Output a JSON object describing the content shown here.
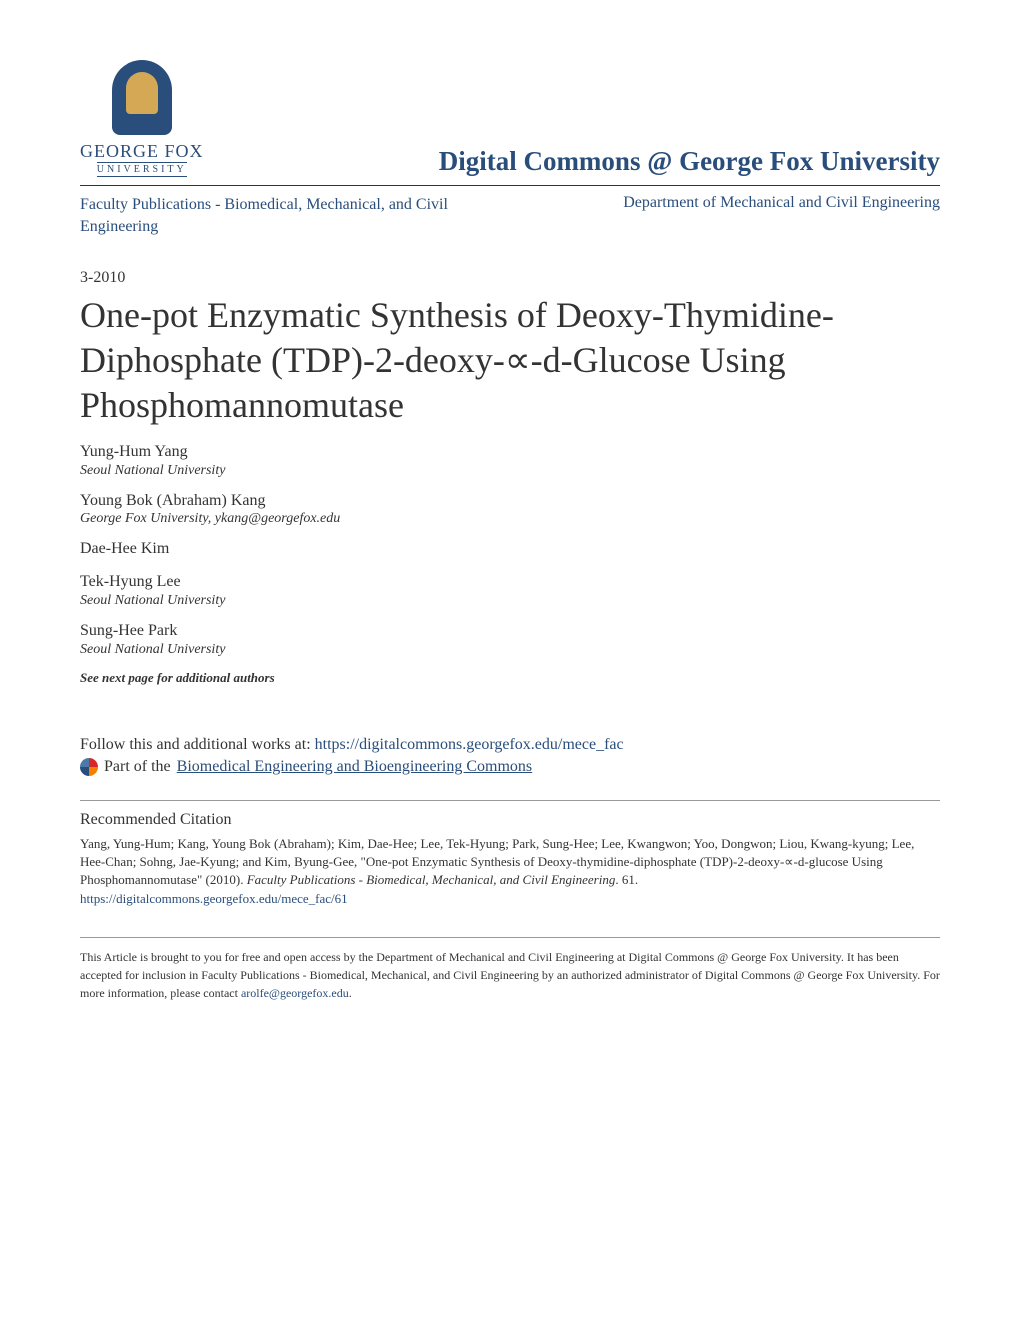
{
  "header": {
    "logo_main": "GEORGE FOX",
    "logo_sub": "UNIVERSITY",
    "site_title": "Digital Commons @ George Fox University"
  },
  "breadcrumb": {
    "left": "Faculty Publications - Biomedical, Mechanical, and Civil Engineering",
    "right": "Department of Mechanical and Civil Engineering"
  },
  "date": "3-2010",
  "title": "One-pot Enzymatic Synthesis of Deoxy-Thymidine-Diphosphate (TDP)-2-deoxy-∝-d-Glucose Using Phosphomannomutase",
  "authors": [
    {
      "name": "Yung-Hum Yang",
      "affiliation": "Seoul National University"
    },
    {
      "name": "Young Bok (Abraham) Kang",
      "affiliation": "George Fox University, ykang@georgefox.edu"
    },
    {
      "name": "Dae-Hee Kim",
      "affiliation": ""
    },
    {
      "name": "Tek-Hyung Lee",
      "affiliation": "Seoul National University"
    },
    {
      "name": "Sung-Hee Park",
      "affiliation": "Seoul National University"
    }
  ],
  "see_next": "See next page for additional authors",
  "follow": {
    "prefix": "Follow this and additional works at: ",
    "url": "https://digitalcommons.georgefox.edu/mece_fac"
  },
  "part_of": {
    "prefix": "Part of the ",
    "link": "Biomedical Engineering and Bioengineering Commons"
  },
  "recommended": {
    "heading": "Recommended Citation",
    "body_1": "Yang, Yung-Hum; Kang, Young Bok (Abraham); Kim, Dae-Hee; Lee, Tek-Hyung; Park, Sung-Hee; Lee, Kwangwon; Yoo, Dongwon; Liou, Kwang-kyung; Lee, Hee-Chan; Sohng, Jae-Kyung; and Kim, Byung-Gee, \"One-pot Enzymatic Synthesis of Deoxy-thymidine-diphosphate (TDP)-2-deoxy-∝-d-glucose Using Phosphomannomutase\" (2010). ",
    "italic": "Faculty Publications - Biomedical, Mechanical, and Civil Engineering",
    "body_2": ". 61.",
    "link": "https://digitalcommons.georgefox.edu/mece_fac/61"
  },
  "footer": {
    "text_1": "This Article is brought to you for free and open access by the Department of Mechanical and Civil Engineering at Digital Commons @ George Fox University. It has been accepted for inclusion in Faculty Publications - Biomedical, Mechanical, and Civil Engineering by an authorized administrator of Digital Commons @ George Fox University. For more information, please contact ",
    "email": "arolfe@georgefox.edu",
    "text_2": "."
  },
  "colors": {
    "brand_blue": "#2a4e7c",
    "text_dark": "#333333",
    "background": "#ffffff",
    "divider_gray": "#999999"
  },
  "typography": {
    "title_fontsize": 36,
    "site_title_fontsize": 27,
    "body_fontsize": 16,
    "citation_fontsize": 13,
    "footer_fontsize": 12
  }
}
